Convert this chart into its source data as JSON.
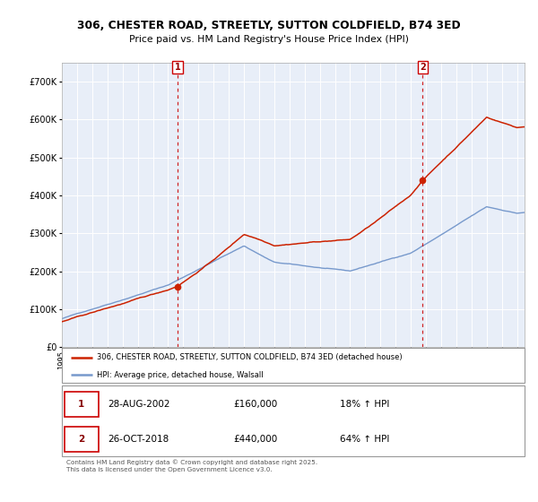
{
  "title_line1": "306, CHESTER ROAD, STREETLY, SUTTON COLDFIELD, B74 3ED",
  "title_line2": "Price paid vs. HM Land Registry's House Price Index (HPI)",
  "ylim": [
    0,
    750000
  ],
  "yticks": [
    0,
    100000,
    200000,
    300000,
    400000,
    500000,
    600000,
    700000
  ],
  "ytick_labels": [
    "£0",
    "£100K",
    "£200K",
    "£300K",
    "£400K",
    "£500K",
    "£600K",
    "£700K"
  ],
  "hpi_color": "#7799cc",
  "price_color": "#cc2200",
  "vline_color": "#cc0000",
  "marker1_price": 160000,
  "marker2_price": 440000,
  "sale1_year": 2002.64,
  "sale2_year": 2018.79,
  "legend_entry1": "306, CHESTER ROAD, STREETLY, SUTTON COLDFIELD, B74 3ED (detached house)",
  "legend_entry2": "HPI: Average price, detached house, Walsall",
  "table_row1": [
    "1",
    "28-AUG-2002",
    "£160,000",
    "18% ↑ HPI"
  ],
  "table_row2": [
    "2",
    "26-OCT-2018",
    "£440,000",
    "64% ↑ HPI"
  ],
  "footnote": "Contains HM Land Registry data © Crown copyright and database right 2025.\nThis data is licensed under the Open Government Licence v3.0.",
  "bg_color": "#e8eef8",
  "fig_bg": "#ffffff",
  "xmin": 1995,
  "xmax": 2025.5
}
